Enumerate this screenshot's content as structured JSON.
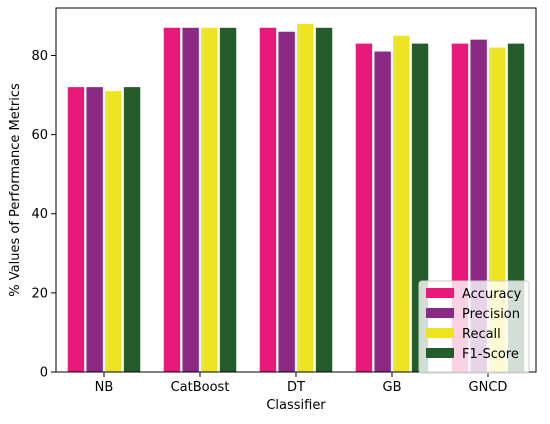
{
  "chart_data": {
    "type": "bar",
    "title": "",
    "xlabel": "Classifier",
    "ylabel": "% Values of Performance Metrics",
    "categories": [
      "NB",
      "CatBoost",
      "DT",
      "GB",
      "GNCD"
    ],
    "series": [
      {
        "name": "Accuracy",
        "color": "#e8197a",
        "values": [
          72,
          87,
          87,
          83,
          83
        ]
      },
      {
        "name": "Precision",
        "color": "#8b2a85",
        "values": [
          72,
          87,
          86,
          81,
          84
        ]
      },
      {
        "name": "Recall",
        "color": "#ede424",
        "values": [
          71,
          87,
          88,
          85,
          82
        ]
      },
      {
        "name": "F1-Score",
        "color": "#245c2c",
        "values": [
          72,
          87,
          87,
          83,
          83
        ]
      }
    ],
    "ylim": [
      0,
      92
    ],
    "yticks": [
      0,
      20,
      40,
      60,
      80
    ],
    "grid": false,
    "legend_position": "lower-right"
  }
}
